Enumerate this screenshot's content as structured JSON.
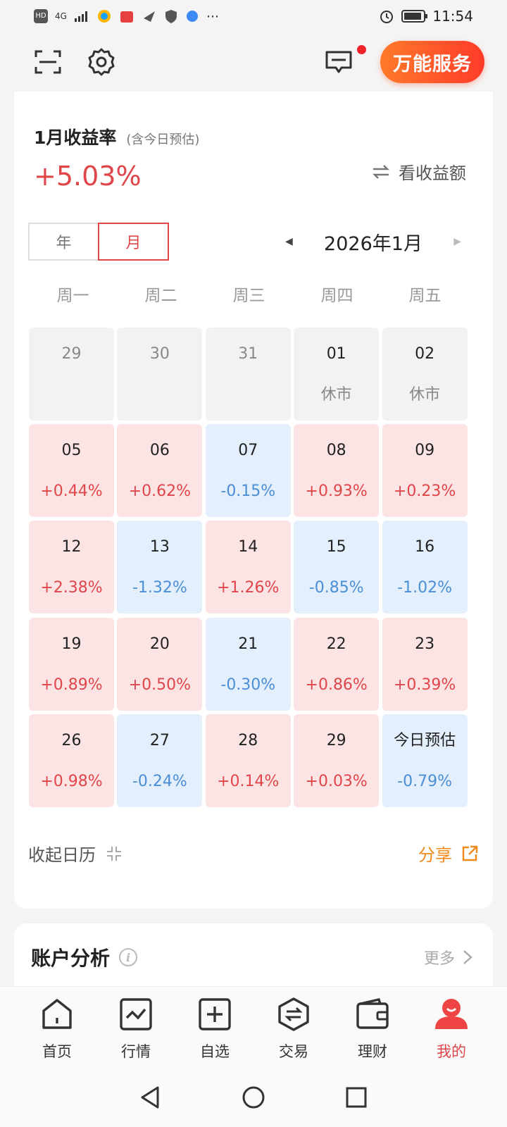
{
  "status_bar": {
    "left_badges": [
      "HD",
      "4G"
    ],
    "time": "11:54",
    "battery_level": 0.9
  },
  "top_bar": {
    "service_button": "万能服务"
  },
  "earnings": {
    "title": "1月收益率",
    "subtitle": "(含今日预估)",
    "value": "+5.03%",
    "toggle_label": "看收益额"
  },
  "segment": {
    "year": "年",
    "month": "月",
    "selected": "month"
  },
  "month_nav": {
    "label": "2026年1月"
  },
  "weekdays": [
    "周一",
    "周二",
    "周三",
    "周四",
    "周五"
  ],
  "calendar": [
    {
      "date": "29",
      "value": "",
      "type": "neutral"
    },
    {
      "date": "30",
      "value": "",
      "type": "neutral"
    },
    {
      "date": "31",
      "value": "",
      "type": "neutral"
    },
    {
      "date": "01",
      "value": "休市",
      "type": "neutral"
    },
    {
      "date": "02",
      "value": "休市",
      "type": "neutral"
    },
    {
      "date": "05",
      "value": "+0.44%",
      "type": "up"
    },
    {
      "date": "06",
      "value": "+0.62%",
      "type": "up"
    },
    {
      "date": "07",
      "value": "-0.15%",
      "type": "down"
    },
    {
      "date": "08",
      "value": "+0.93%",
      "type": "up"
    },
    {
      "date": "09",
      "value": "+0.23%",
      "type": "up"
    },
    {
      "date": "12",
      "value": "+2.38%",
      "type": "up"
    },
    {
      "date": "13",
      "value": "-1.32%",
      "type": "down"
    },
    {
      "date": "14",
      "value": "+1.26%",
      "type": "up"
    },
    {
      "date": "15",
      "value": "-0.85%",
      "type": "down"
    },
    {
      "date": "16",
      "value": "-1.02%",
      "type": "down"
    },
    {
      "date": "19",
      "value": "+0.89%",
      "type": "up"
    },
    {
      "date": "20",
      "value": "+0.50%",
      "type": "up"
    },
    {
      "date": "21",
      "value": "-0.30%",
      "type": "down"
    },
    {
      "date": "22",
      "value": "+0.86%",
      "type": "up"
    },
    {
      "date": "23",
      "value": "+0.39%",
      "type": "up"
    },
    {
      "date": "26",
      "value": "+0.98%",
      "type": "up"
    },
    {
      "date": "27",
      "value": "-0.24%",
      "type": "down"
    },
    {
      "date": "28",
      "value": "+0.14%",
      "type": "up"
    },
    {
      "date": "29",
      "value": "+0.03%",
      "type": "up"
    },
    {
      "date": "今日预估",
      "value": "-0.79%",
      "type": "down"
    }
  ],
  "footer": {
    "collapse_label": "收起日历",
    "share_label": "分享"
  },
  "analysis": {
    "title": "账户分析",
    "more_label": "更多"
  },
  "bottom_nav": [
    {
      "label": "首页",
      "icon": "home-icon",
      "active": false
    },
    {
      "label": "行情",
      "icon": "market-chart-icon",
      "active": false
    },
    {
      "label": "自选",
      "icon": "watchlist-plus-icon",
      "active": false
    },
    {
      "label": "交易",
      "icon": "trade-exchange-icon",
      "active": false
    },
    {
      "label": "理财",
      "icon": "wallet-icon",
      "active": false
    },
    {
      "label": "我的",
      "icon": "profile-icon",
      "active": true
    }
  ],
  "colors": {
    "up": "#e0454a",
    "down": "#4a8fd6",
    "accent_orange": "#f08a1a"
  }
}
